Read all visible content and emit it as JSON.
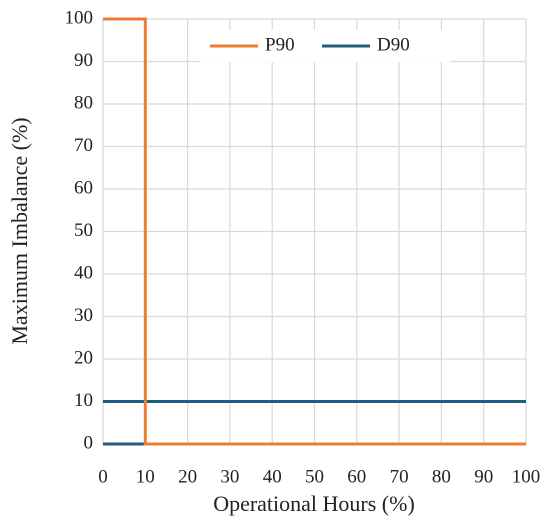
{
  "chart_data": {
    "type": "line",
    "x_label": "Operational Hours (%)",
    "y_label": "Maximum Imbalance (%)",
    "xlim": [
      0,
      100
    ],
    "ylim": [
      0,
      100
    ],
    "xticks": [
      0,
      10,
      20,
      30,
      40,
      50,
      60,
      70,
      80,
      90,
      100
    ],
    "yticks": [
      0,
      10,
      20,
      30,
      40,
      50,
      60,
      70,
      80,
      90,
      100
    ],
    "grid": true,
    "legend": "top",
    "series": [
      {
        "name": "P90",
        "color": "#ed7d31",
        "x": [
          0,
          10,
          10,
          100
        ],
        "values": [
          100,
          100,
          0,
          0
        ]
      },
      {
        "name": "D90",
        "color": "#1f5d80",
        "x": [
          0,
          10,
          10,
          0,
          100
        ],
        "values": [
          0,
          0,
          null,
          10,
          10
        ]
      }
    ]
  }
}
